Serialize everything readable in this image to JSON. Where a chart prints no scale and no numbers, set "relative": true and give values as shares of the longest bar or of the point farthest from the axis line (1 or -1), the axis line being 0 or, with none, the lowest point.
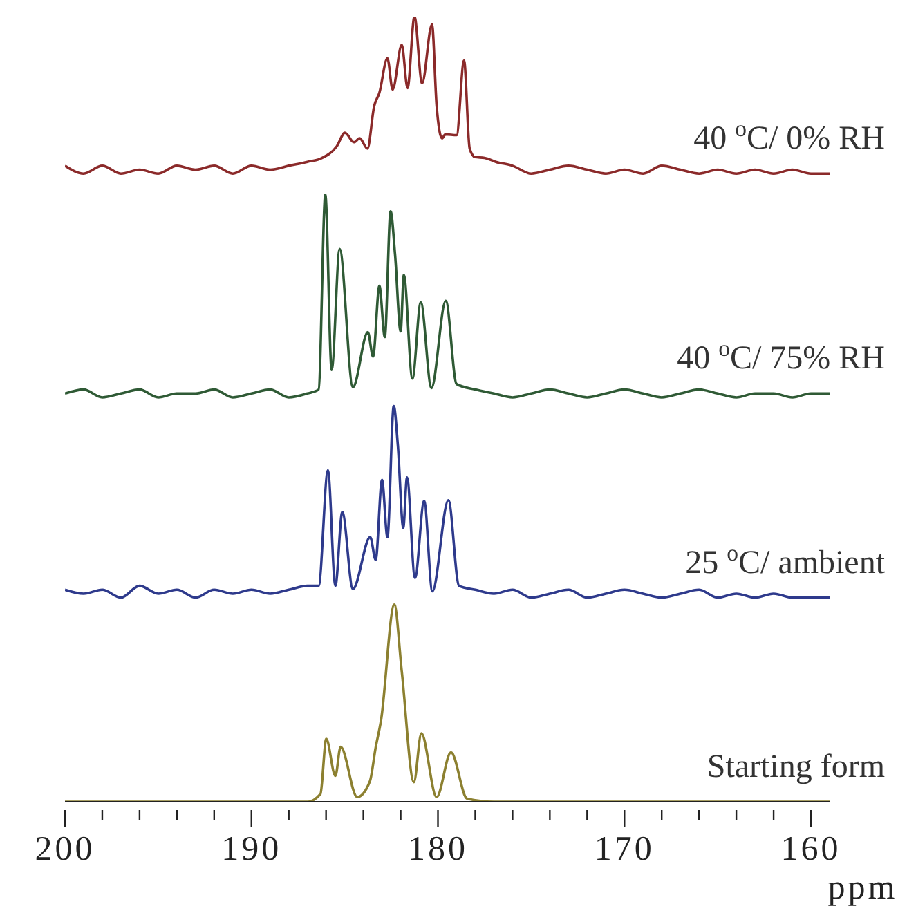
{
  "chart_data": {
    "type": "line",
    "relative": true,
    "xlabel": "ppm",
    "xlim": [
      200,
      159
    ],
    "xticks": [
      200,
      {
        "value": 198,
        "label": null
      },
      {
        "value": 196,
        "label": null
      },
      {
        "value": 194,
        "label": null
      },
      {
        "value": 192,
        "label": null
      },
      190,
      {
        "value": 188,
        "label": null
      },
      {
        "value": 186,
        "label": null
      },
      {
        "value": 184,
        "label": null
      },
      {
        "value": 182,
        "label": null
      },
      180,
      {
        "value": 178,
        "label": null
      },
      {
        "value": 176,
        "label": null
      },
      {
        "value": 174,
        "label": null
      },
      {
        "value": 172,
        "label": null
      },
      170,
      {
        "value": 168,
        "label": null
      },
      {
        "value": 166,
        "label": null
      },
      {
        "value": 164,
        "label": null
      },
      {
        "value": 162,
        "label": null
      },
      160
    ],
    "grid": false,
    "marker": "none",
    "line_style": "solid",
    "series": [
      {
        "name": "40 $^{o}$C/ 0% RH",
        "color": "#8b2a2a",
        "x": [
          200,
          199,
          198,
          197,
          196,
          195,
          194,
          193,
          192,
          191,
          190,
          189,
          188,
          187,
          186.3,
          185.42,
          184.99,
          184.5,
          184.2,
          183.78,
          183.42,
          183.14,
          182.71,
          182.43,
          181.94,
          181.63,
          181.26,
          180.85,
          180.32,
          180.07,
          179.78,
          179.6,
          179.0,
          178.6,
          178.3,
          178.01,
          177.5,
          176.9,
          176,
          175,
          174,
          173,
          172,
          171,
          170,
          169,
          168,
          167,
          166,
          165,
          164,
          163,
          162,
          161,
          160,
          159
        ],
        "values": [
          0.81,
          0.8,
          0.81,
          0.8,
          0.805,
          0.8,
          0.81,
          0.805,
          0.81,
          0.8,
          0.81,
          0.805,
          0.81,
          0.815,
          0.819,
          0.835,
          0.852,
          0.84,
          0.845,
          0.832,
          0.886,
          0.903,
          0.947,
          0.907,
          0.964,
          0.909,
          1,
          0.915,
          0.99,
          0.886,
          0.845,
          0.85,
          0.849,
          0.944,
          0.832,
          0.821,
          0.82,
          0.815,
          0.81,
          0.8,
          0.805,
          0.81,
          0.805,
          0.8,
          0.805,
          0.8,
          0.81,
          0.805,
          0.8,
          0.805,
          0.8,
          0.805,
          0.8,
          0.805,
          0.8,
          0.8
        ]
      },
      {
        "name": "40 $^{o}$C/ 75% RH",
        "color": "#2f5a35",
        "x": [
          200,
          199,
          198,
          197,
          196,
          195,
          194,
          193,
          192,
          191,
          190,
          189,
          188,
          187,
          186.4,
          186.04,
          185.7,
          185.27,
          184.56,
          183.76,
          183.48,
          183.14,
          182.85,
          182.54,
          182.3,
          182.0,
          181.83,
          181.37,
          180.92,
          180.35,
          179.58,
          179.0,
          178,
          177,
          176,
          175,
          174,
          173,
          172,
          171,
          170,
          169,
          168,
          167,
          166,
          165,
          164,
          163,
          162,
          161,
          160,
          159
        ],
        "values": [
          0.52,
          0.525,
          0.515,
          0.52,
          0.525,
          0.515,
          0.52,
          0.52,
          0.525,
          0.515,
          0.52,
          0.525,
          0.515,
          0.52,
          0.525,
          0.773,
          0.55,
          0.704,
          0.528,
          0.598,
          0.567,
          0.657,
          0.592,
          0.752,
          0.697,
          0.599,
          0.671,
          0.539,
          0.636,
          0.527,
          0.638,
          0.532,
          0.525,
          0.52,
          0.515,
          0.52,
          0.525,
          0.52,
          0.515,
          0.52,
          0.525,
          0.52,
          0.515,
          0.52,
          0.525,
          0.52,
          0.515,
          0.52,
          0.52,
          0.515,
          0.52,
          0.52
        ]
      },
      {
        "name": "25 $^{o}$C/ ambient",
        "color": "#2e3a8c",
        "x": [
          200,
          199,
          198,
          197,
          196,
          195,
          194,
          193,
          192,
          191,
          190,
          189,
          188,
          187,
          186.4,
          185.9,
          185.5,
          185.13,
          184.56,
          183.63,
          183.34,
          183.0,
          182.71,
          182.37,
          182.15,
          181.86,
          181.66,
          181.23,
          180.74,
          180.3,
          179.44,
          178.87,
          178,
          177,
          176,
          175,
          174,
          173,
          172,
          171,
          170,
          169,
          168,
          167,
          166,
          165,
          164,
          163,
          162,
          161,
          160,
          159
        ],
        "values": [
          0.27,
          0.265,
          0.27,
          0.26,
          0.275,
          0.265,
          0.27,
          0.26,
          0.27,
          0.265,
          0.27,
          0.265,
          0.27,
          0.275,
          0.275,
          0.422,
          0.275,
          0.369,
          0.271,
          0.337,
          0.308,
          0.41,
          0.337,
          0.504,
          0.454,
          0.349,
          0.413,
          0.285,
          0.383,
          0.268,
          0.384,
          0.275,
          0.27,
          0.265,
          0.27,
          0.26,
          0.265,
          0.27,
          0.26,
          0.265,
          0.27,
          0.265,
          0.26,
          0.265,
          0.27,
          0.26,
          0.265,
          0.26,
          0.265,
          0.26,
          0.26,
          0.26
        ]
      },
      {
        "name": "Starting form",
        "color": "#8c8030",
        "x": [
          200,
          190,
          187,
          186.3,
          185.99,
          185.5,
          185.22,
          184.33,
          183.65,
          183.34,
          183.05,
          182.34,
          181.94,
          181.29,
          180.89,
          180.07,
          179.3,
          178.44,
          177,
          170,
          159
        ],
        "values": [
          0,
          0,
          0,
          0.01,
          0.08,
          0.033,
          0.07,
          0.006,
          0.026,
          0.069,
          0.104,
          0.251,
          0.166,
          0.025,
          0.087,
          0.006,
          0.063,
          0.004,
          0,
          0,
          0
        ]
      }
    ]
  }
}
